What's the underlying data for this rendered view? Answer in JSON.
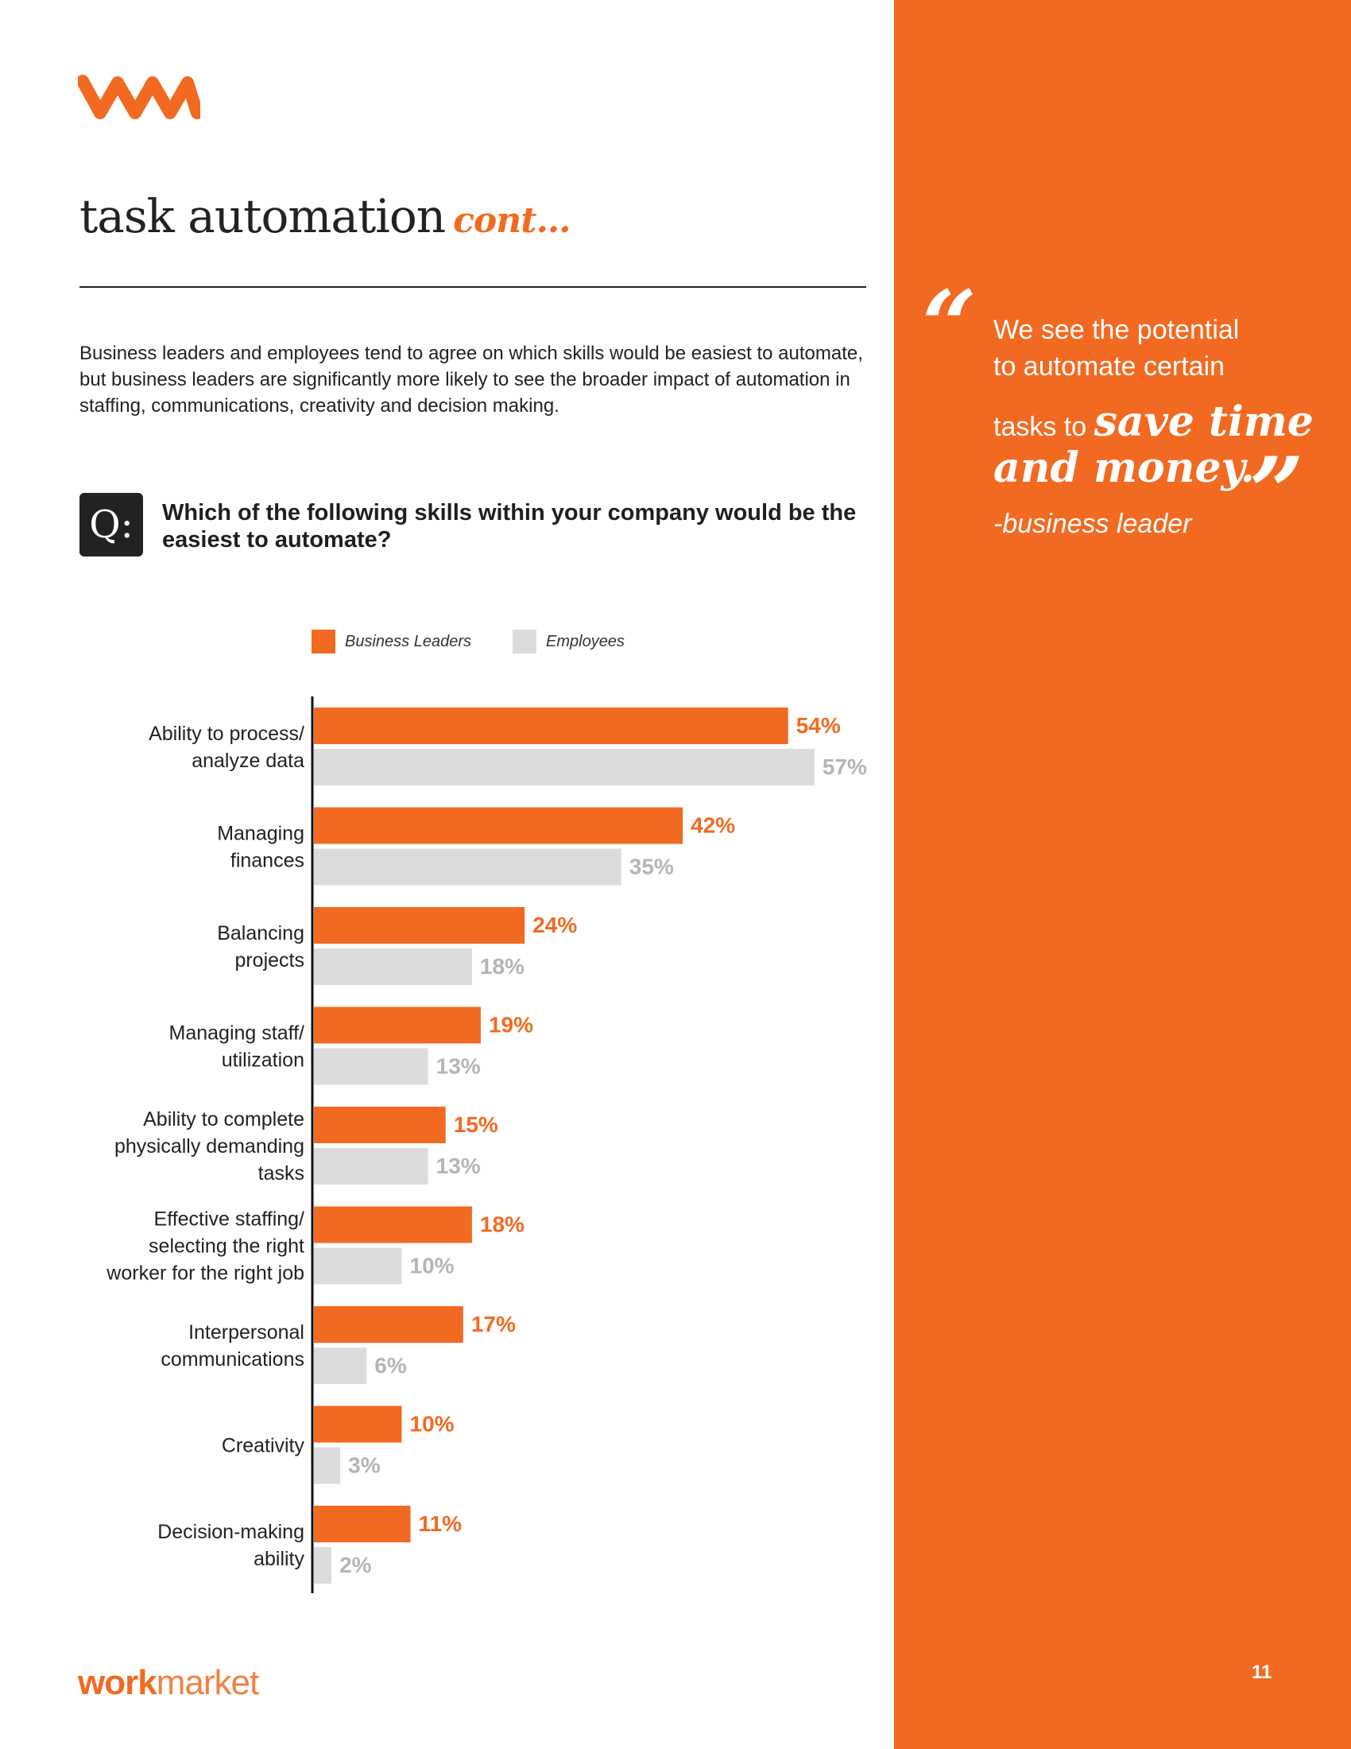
{
  "colors": {
    "accent": "#F26A21",
    "employees": "#DCDCDC",
    "text": "#222222"
  },
  "header": {
    "logo_icon": "wm-logo-icon",
    "title": "task automation",
    "title_suffix": "cont..."
  },
  "intro": "Business leaders and employees tend to agree on which skills would be easiest to automate, but business leaders are significantly more likely to see the broader impact of automation in staffing, communications, creativity and decision making.",
  "question": {
    "badge": "Q:",
    "text": "Which of the following skills within your company would be the easiest to automate?"
  },
  "chart_data": {
    "type": "bar",
    "orientation": "horizontal",
    "title": "Which of the following skills within your company would be the easiest to automate?",
    "categories": [
      [
        "Ability to process/",
        "analyze data"
      ],
      [
        "Managing",
        "finances"
      ],
      [
        "Balancing",
        "projects"
      ],
      [
        "Managing staff/",
        "utilization"
      ],
      [
        "Ability to complete",
        "physically demanding",
        "tasks"
      ],
      [
        "Effective staffing/",
        "selecting the right",
        "worker for the right job"
      ],
      [
        "Interpersonal",
        "communications"
      ],
      [
        "Creativity"
      ],
      [
        "Decision-making",
        "ability"
      ]
    ],
    "series": [
      {
        "name": "Business Leaders",
        "color": "#F26A21",
        "values": [
          54,
          42,
          24,
          19,
          15,
          18,
          17,
          10,
          11
        ]
      },
      {
        "name": "Employees",
        "color": "#DCDCDC",
        "label_color": "#B5B5B5",
        "values": [
          57,
          35,
          18,
          13,
          13,
          10,
          6,
          3,
          2
        ]
      }
    ],
    "value_suffix": "%",
    "xlim": [
      0,
      60
    ],
    "legend": "top"
  },
  "quote": {
    "line1": "We see the potential",
    "line2": "to automate certain",
    "line3_plain": "tasks to",
    "line3_script": "save time",
    "line4_script": "and money.",
    "attribution": "-business leader"
  },
  "footer": {
    "brand_bold": "work",
    "brand_light": "market",
    "page_number": "11"
  }
}
